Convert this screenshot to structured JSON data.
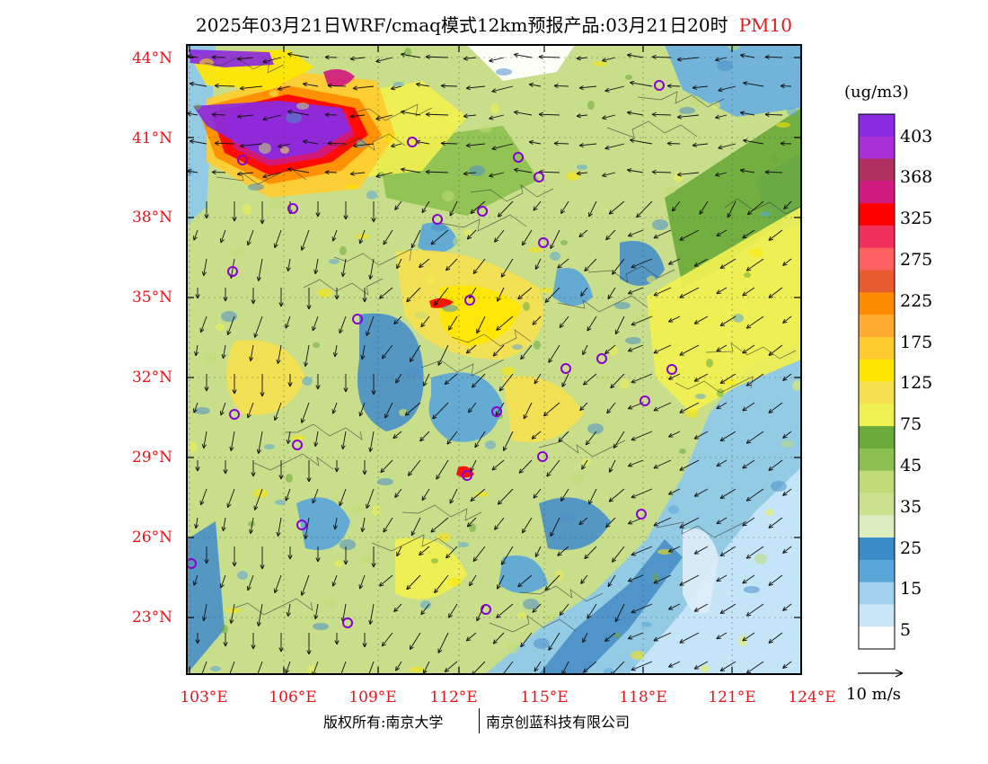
{
  "title": {
    "text": "2025年03月21日WRF/cmaq模式12km预报产品:03月21日20时",
    "pollutant": "PM10"
  },
  "latitudes": [
    "44°N",
    "41°N",
    "38°N",
    "35°N",
    "32°N",
    "29°N",
    "26°N",
    "23°N"
  ],
  "longitudes": [
    "103°E",
    "106°E",
    "109°E",
    "112°E",
    "115°E",
    "118°E",
    "121°E",
    "124°E"
  ],
  "colorbar": {
    "unit": "(ug/m3)",
    "labels": [
      "403",
      "368",
      "325",
      "275",
      "225",
      "175",
      "125",
      "75",
      "45",
      "35",
      "25",
      "15",
      "5"
    ],
    "colors": [
      "#8a2be2",
      "#a62fd6",
      "#b03060",
      "#d01a80",
      "#ff0000",
      "#f0305a",
      "#ff6060",
      "#e85a30",
      "#ff8c00",
      "#ffaa30",
      "#ffcc30",
      "#ffe600",
      "#f5e050",
      "#f0f050",
      "#6aaa3a",
      "#8cc050",
      "#c0dc78",
      "#cce290",
      "#dceec0",
      "#3a8cc8",
      "#5aa6d8",
      "#a0d2f0",
      "#c8e6f8",
      "#ffffff"
    ]
  },
  "wind_reference": "10 m/s",
  "credit": {
    "left": "版权所有:南京大学",
    "right": "南京创蓝科技有限公司"
  }
}
